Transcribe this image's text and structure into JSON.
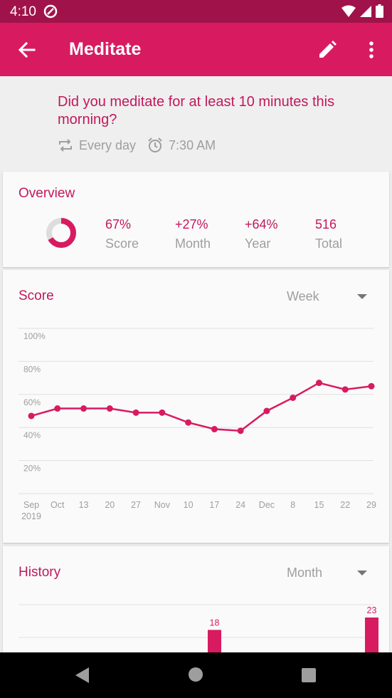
{
  "status_bar": {
    "time": "4:10"
  },
  "app_bar": {
    "title": "Meditate"
  },
  "habit": {
    "question": "Did you meditate for at least 10 minutes this morning?",
    "frequency": "Every day",
    "reminder": "7:30 AM"
  },
  "overview": {
    "title": "Overview",
    "score_fraction": 0.67,
    "stats": [
      {
        "value": "67%",
        "label": "Score"
      },
      {
        "value": "+27%",
        "label": "Month"
      },
      {
        "value": "+64%",
        "label": "Year"
      },
      {
        "value": "516",
        "label": "Total"
      }
    ]
  },
  "score": {
    "title": "Score",
    "range": "Week",
    "chart_data": {
      "type": "line",
      "y_ticks": [
        "100%",
        "80%",
        "60%",
        "40%",
        "20%"
      ],
      "x_labels": [
        "Sep",
        "Oct",
        "13",
        "20",
        "27",
        "Nov",
        "10",
        "17",
        "24",
        "Dec",
        "8",
        "15",
        "22",
        "29"
      ],
      "x_sublabel": "2019",
      "values": [
        47,
        51.5,
        51.5,
        51.5,
        49,
        49,
        43,
        39,
        38,
        50,
        58,
        67,
        63,
        65
      ],
      "ylim": [
        0,
        100
      ],
      "grid": true,
      "color": "#d81b60"
    }
  },
  "history": {
    "title": "History",
    "range": "Month",
    "chart_data": {
      "type": "bar",
      "bars": [
        {
          "value": 18,
          "label": "18"
        },
        {
          "value": 23,
          "label": "23"
        }
      ],
      "color": "#d81b60"
    }
  }
}
